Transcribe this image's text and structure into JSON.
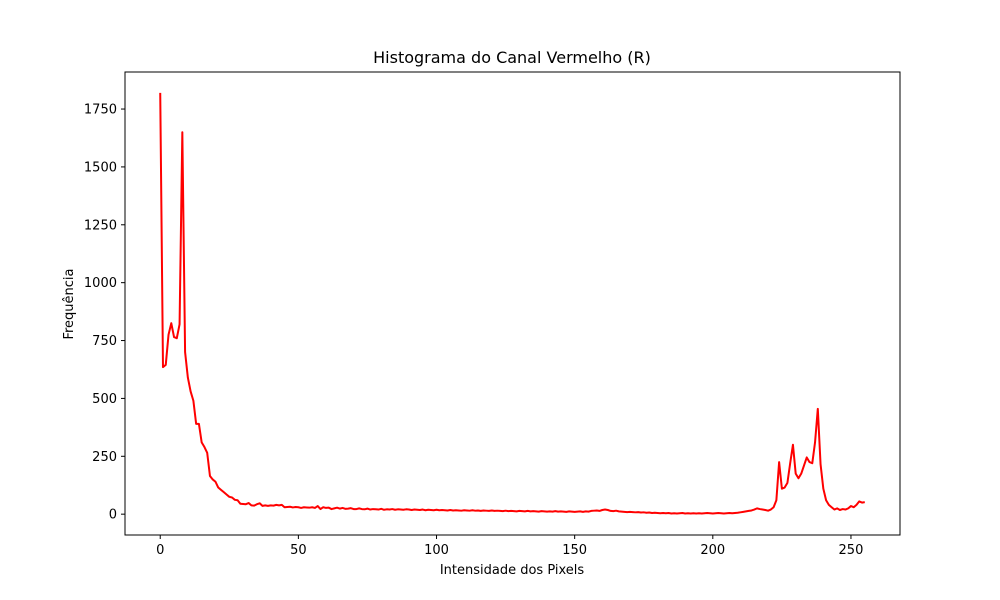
{
  "chart_data": {
    "type": "line",
    "title": "Histograma do Canal Vermelho (R)",
    "xlabel": "Intensidade dos Pixels",
    "ylabel": "Frequência",
    "xlim": [
      -12.75,
      267.75
    ],
    "ylim": [
      -90,
      1910
    ],
    "xticks": [
      0,
      50,
      100,
      150,
      200,
      250
    ],
    "yticks": [
      0,
      250,
      500,
      750,
      1000,
      1250,
      1500,
      1750
    ],
    "grid": false,
    "legend": "none",
    "series": [
      {
        "color": "#ff0000",
        "x_start": 0,
        "x_step": 1,
        "values": [
          1820,
          635,
          645,
          775,
          825,
          765,
          760,
          820,
          1650,
          700,
          590,
          530,
          490,
          390,
          390,
          310,
          290,
          265,
          165,
          150,
          140,
          115,
          105,
          95,
          85,
          75,
          72,
          62,
          60,
          45,
          44,
          43,
          48,
          38,
          37,
          43,
          47,
          36,
          38,
          36,
          38,
          37,
          40,
          38,
          40,
          30,
          31,
          32,
          29,
          31,
          30,
          27,
          30,
          29,
          28,
          30,
          27,
          35,
          22,
          30,
          27,
          28,
          22,
          25,
          28,
          24,
          27,
          23,
          24,
          26,
          22,
          22,
          25,
          22,
          21,
          24,
          20,
          22,
          21,
          20,
          23,
          19,
          21,
          20,
          22,
          19,
          21,
          20,
          19,
          21,
          20,
          18,
          20,
          19,
          18,
          20,
          17,
          19,
          18,
          17,
          19,
          17,
          18,
          17,
          16,
          18,
          16,
          17,
          16,
          15,
          17,
          16,
          15,
          17,
          15,
          16,
          14,
          16,
          15,
          14,
          16,
          14,
          15,
          14,
          13,
          15,
          13,
          14,
          13,
          12,
          14,
          13,
          12,
          14,
          12,
          13,
          12,
          11,
          13,
          12,
          11,
          12,
          11,
          13,
          11,
          12,
          11,
          10,
          12,
          11,
          10,
          11,
          12,
          10,
          12,
          11,
          14,
          15,
          16,
          14,
          18,
          20,
          18,
          14,
          13,
          15,
          12,
          11,
          10,
          9,
          10,
          9,
          8,
          9,
          7,
          8,
          6,
          7,
          5,
          6,
          5,
          4,
          5,
          4,
          5,
          3,
          4,
          3,
          4,
          5,
          3,
          4,
          3,
          4,
          3,
          4,
          3,
          4,
          5,
          4,
          3,
          4,
          5,
          4,
          3,
          4,
          5,
          4,
          5,
          6,
          8,
          10,
          12,
          14,
          16,
          20,
          25,
          22,
          20,
          18,
          15,
          20,
          30,
          60,
          225,
          110,
          115,
          135,
          220,
          300,
          175,
          155,
          175,
          210,
          245,
          225,
          220,
          310,
          455,
          215,
          110,
          60,
          40,
          30,
          20,
          25,
          18,
          22,
          20,
          25,
          35,
          30,
          40,
          55,
          50,
          52
        ]
      }
    ]
  }
}
